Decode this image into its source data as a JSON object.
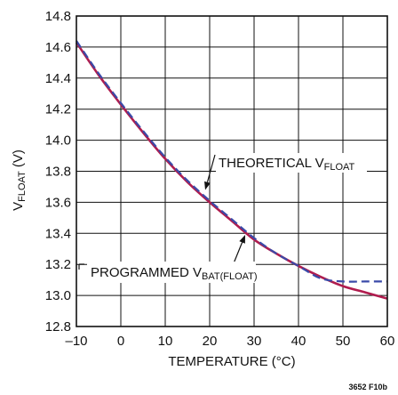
{
  "chart_data": {
    "type": "line",
    "xlabel": "TEMPERATURE (°C)",
    "ylabel": {
      "base": "V",
      "sub": "FLOAT",
      "suffix": " (V)"
    },
    "xlim": [
      -10,
      60
    ],
    "ylim": [
      12.8,
      14.8
    ],
    "xticks": [
      -10,
      0,
      10,
      20,
      30,
      40,
      50,
      60
    ],
    "yticks": [
      12.8,
      13.0,
      13.2,
      13.4,
      13.6,
      13.8,
      14.0,
      14.2,
      14.4,
      14.6,
      14.8
    ],
    "xtick_labels": [
      "–10",
      "0",
      "10",
      "20",
      "30",
      "40",
      "50",
      "60"
    ],
    "ytick_labels": [
      "12.8",
      "13.0",
      "13.2",
      "13.4",
      "13.6",
      "13.8",
      "14.0",
      "14.2",
      "14.4",
      "14.6",
      "14.8"
    ],
    "grid": true,
    "series": [
      {
        "name": "THEORETICAL V_FLOAT",
        "style": "dashed",
        "color": "#3a4aa8",
        "x": [
          -10,
          -5,
          0,
          5,
          10,
          15,
          20,
          25,
          30,
          35,
          40,
          45,
          50,
          55,
          60
        ],
        "y": [
          14.64,
          14.43,
          14.24,
          14.06,
          13.89,
          13.74,
          13.61,
          13.49,
          13.37,
          13.27,
          13.19,
          13.11,
          13.09,
          13.09,
          13.09
        ]
      },
      {
        "name": "PROGRAMMED V_BAT(FLOAT)",
        "style": "solid",
        "color": "#b01c4e",
        "x": [
          -10,
          -5,
          0,
          5,
          10,
          15,
          20,
          25,
          30,
          35,
          40,
          45,
          50,
          55,
          60
        ],
        "y": [
          14.63,
          14.42,
          14.23,
          14.05,
          13.88,
          13.73,
          13.6,
          13.48,
          13.36,
          13.27,
          13.19,
          13.12,
          13.06,
          13.02,
          12.98
        ]
      }
    ],
    "annotations": [
      {
        "label_main": "THEORETICAL V",
        "label_sub": "FLOAT",
        "label_tail": "",
        "target": [
          19,
          13.68
        ]
      },
      {
        "label_main": "PROGRAMMED V",
        "label_sub": "BAT(FLOAT)",
        "label_tail": "",
        "target": [
          28,
          13.39
        ]
      }
    ],
    "figure_id": "3652 F10b"
  }
}
